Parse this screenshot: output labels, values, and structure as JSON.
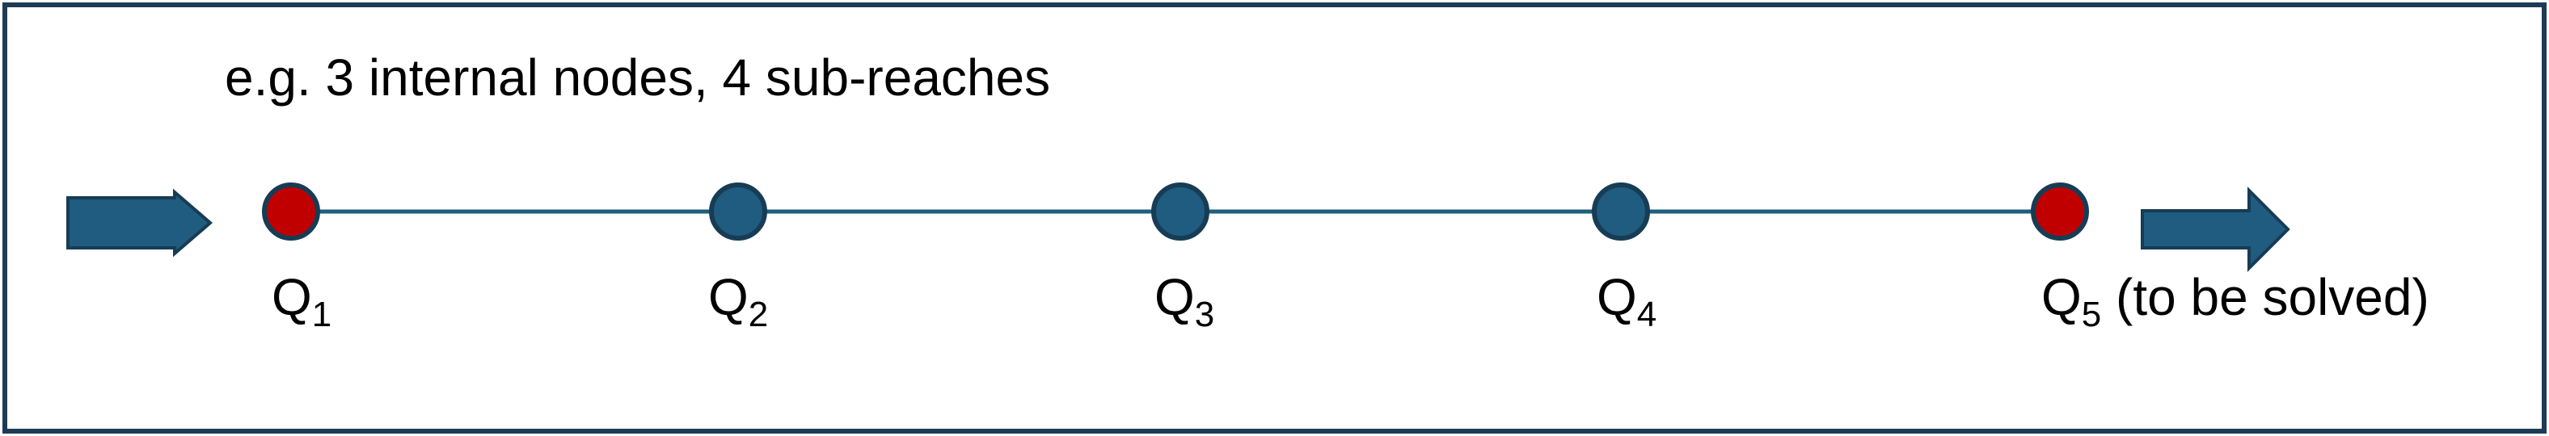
{
  "caption": "e.g. 3 internal nodes, 4 sub-reaches",
  "colors": {
    "frame": "#1d3b56",
    "line": "#1e5f7d",
    "node_fill": "#1f5c80",
    "node_stroke": "#173c55",
    "boundary_fill": "#c00000",
    "arrow_fill": "#1f5c80",
    "arrow_stroke": "#173c55"
  },
  "nodes": [
    {
      "id": "q1",
      "symbol": "Q",
      "sub": "1",
      "suffix": "",
      "type": "boundary"
    },
    {
      "id": "q2",
      "symbol": "Q",
      "sub": "2",
      "suffix": "",
      "type": "internal"
    },
    {
      "id": "q3",
      "symbol": "Q",
      "sub": "3",
      "suffix": "",
      "type": "internal"
    },
    {
      "id": "q4",
      "symbol": "Q",
      "sub": "4",
      "suffix": "",
      "type": "internal"
    },
    {
      "id": "q5",
      "symbol": "Q",
      "sub": "5",
      "suffix": " (to be solved)",
      "type": "boundary"
    }
  ],
  "arrows": [
    "inflow-arrow",
    "outflow-arrow"
  ]
}
